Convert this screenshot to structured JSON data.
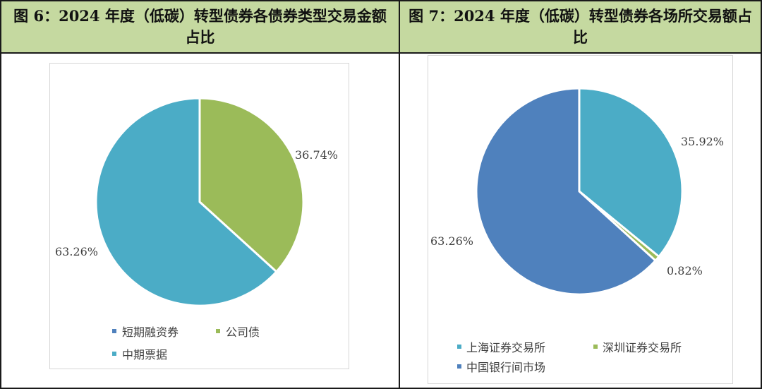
{
  "panels": [
    {
      "title": "图 6：2024 年度（低碳）转型债券各债券类型交易金额占比"
    },
    {
      "title": "图 7：2024 年度（低碳）转型债券各场所交易额占比"
    }
  ],
  "chart_data": [
    {
      "type": "pie",
      "title": "图 6：2024 年度（低碳）转型债券各债券类型交易金额占比",
      "legend_position": "bottom",
      "slices": [
        {
          "name": "短期融资券",
          "value": 0,
          "label": "",
          "color": "#4f81bd"
        },
        {
          "name": "公司债",
          "value": 36.74,
          "label": "36.74%",
          "color": "#9bbb59"
        },
        {
          "name": "中期票据",
          "value": 63.26,
          "label": "63.26%",
          "color": "#4bacc6"
        }
      ]
    },
    {
      "type": "pie",
      "title": "图 7：2024 年度（低碳）转型债券各场所交易额占比",
      "legend_position": "bottom",
      "slices": [
        {
          "name": "上海证券交易所",
          "value": 35.92,
          "label": "35.92%",
          "color": "#4bacc6"
        },
        {
          "name": "深圳证券交易所",
          "value": 0.82,
          "label": "0.82%",
          "color": "#9bbb59"
        },
        {
          "name": "中国银行间市场",
          "value": 63.26,
          "label": "63.26%",
          "color": "#4f81bd"
        }
      ]
    }
  ]
}
